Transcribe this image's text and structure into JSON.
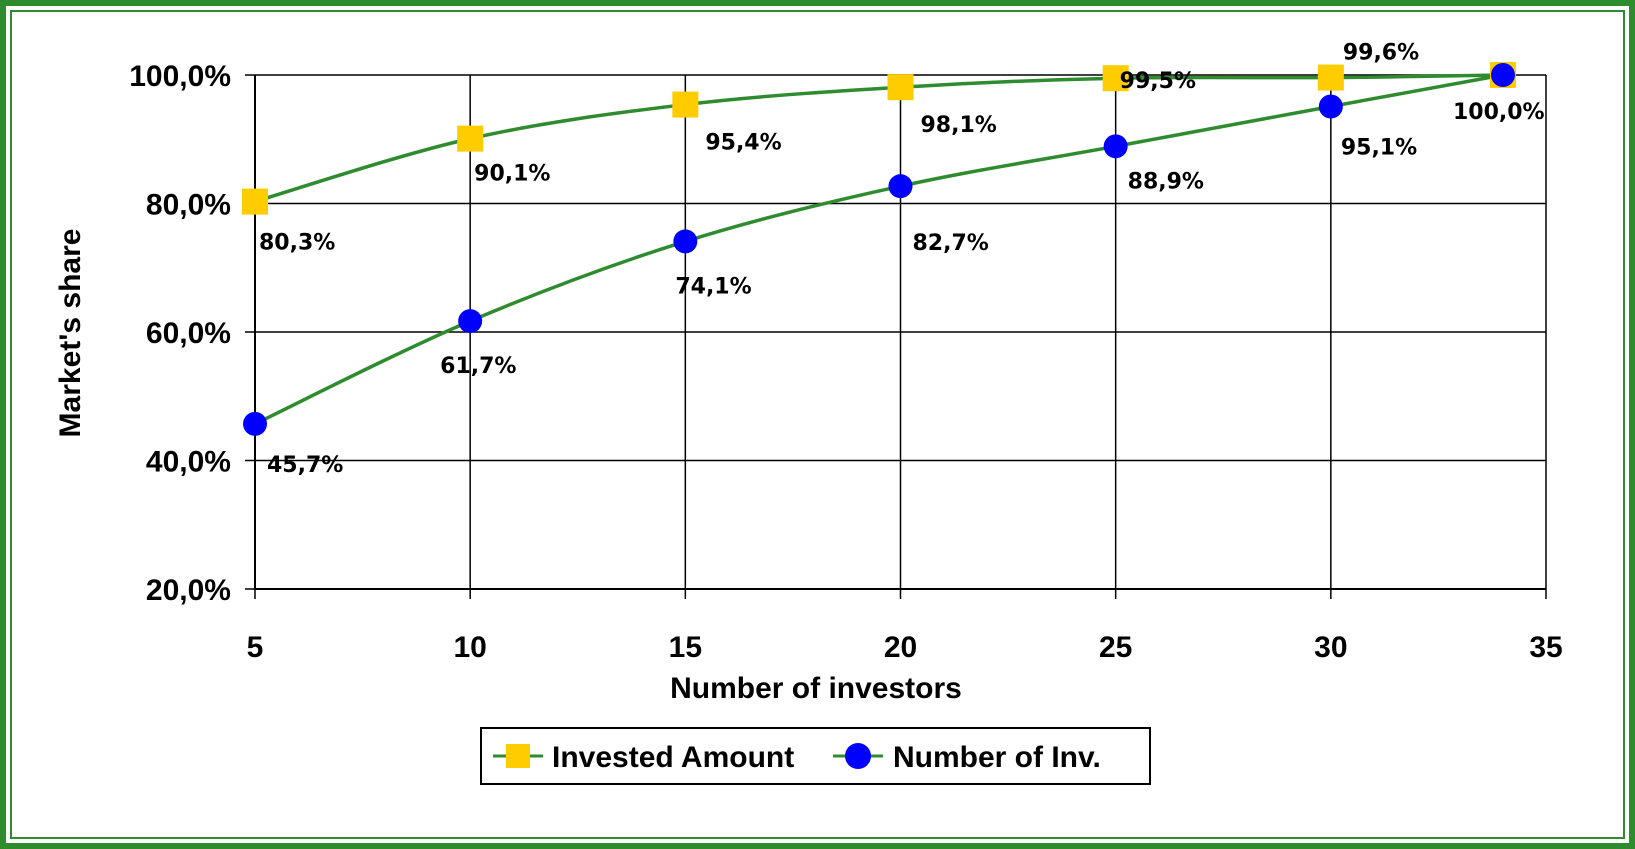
{
  "chart_data": {
    "type": "line",
    "title": "",
    "xlabel": "Number of investors",
    "ylabel": "Market's share",
    "xlim": [
      5,
      35
    ],
    "ylim": [
      20,
      100
    ],
    "x_ticks": [
      5,
      10,
      15,
      20,
      25,
      30,
      35
    ],
    "x_tick_labels": [
      "5",
      "10",
      "15",
      "20",
      "25",
      "30",
      "35"
    ],
    "y_ticks": [
      20,
      40,
      60,
      80,
      100
    ],
    "y_tick_labels": [
      "20,0%",
      "40,0%",
      "60,0%",
      "80,0%",
      "100,0%"
    ],
    "grid": true,
    "legend_position": "bottom",
    "series": [
      {
        "name": "Invested Amount",
        "marker": "square",
        "marker_color": "#ffcc00",
        "line_color": "#2e8b2e",
        "x": [
          5,
          10,
          15,
          20,
          25,
          30,
          34
        ],
        "values": [
          80.3,
          90.1,
          95.4,
          98.1,
          99.5,
          99.6,
          100.0
        ],
        "labels": [
          "80,3%",
          "90,1%",
          "95,4%",
          "98,1%",
          "99,5%",
          "99,6%",
          ""
        ]
      },
      {
        "name": "Number of Inv.",
        "marker": "circle",
        "marker_color": "#0000ff",
        "line_color": "#2e8b2e",
        "x": [
          5,
          10,
          15,
          20,
          25,
          30,
          34
        ],
        "values": [
          45.7,
          61.7,
          74.1,
          82.7,
          88.9,
          95.1,
          100.0
        ],
        "labels": [
          "45,7%",
          "61,7%",
          "74,1%",
          "82,7%",
          "88,9%",
          "95,1%",
          "100,0%"
        ]
      }
    ]
  }
}
